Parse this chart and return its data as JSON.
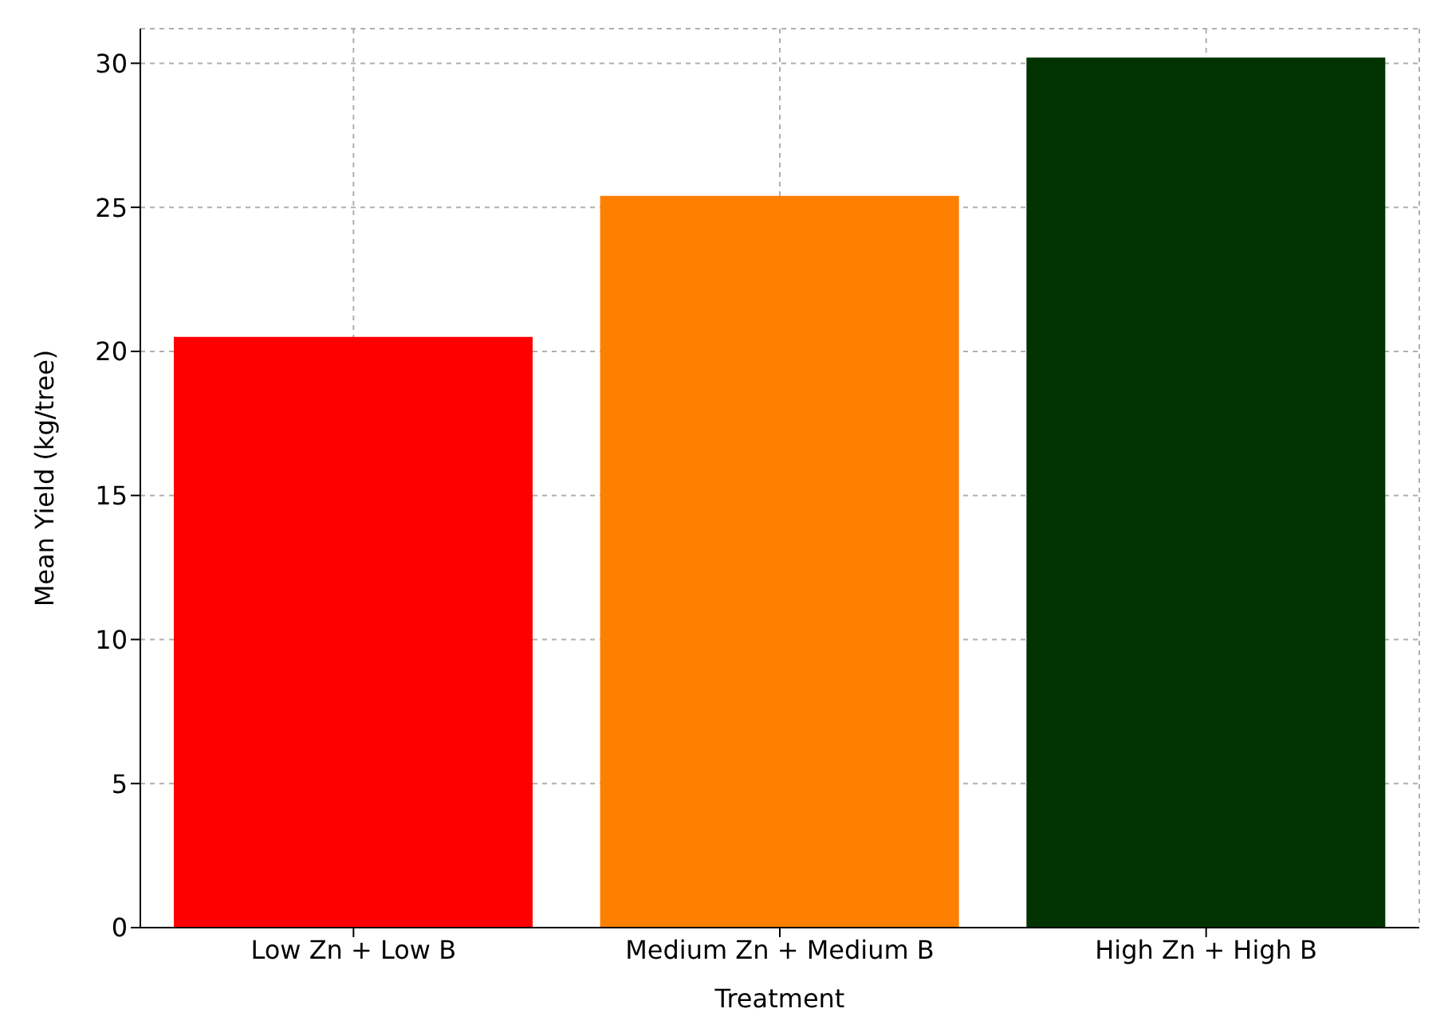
{
  "chart_data": {
    "type": "bar",
    "xlabel": "Treatment",
    "ylabel": "Mean Yield (kg/tree)",
    "categories": [
      "Low Zn + Low B",
      "Medium Zn + Medium B",
      "High Zn + High B"
    ],
    "values": [
      20.5,
      25.4,
      30.2
    ],
    "colors": [
      "#ff0000",
      "#ff7f00",
      "#003300"
    ],
    "ylim": [
      0,
      31.2
    ],
    "yticks": [
      0,
      5,
      10,
      15,
      20,
      25,
      30
    ],
    "grid": true
  }
}
